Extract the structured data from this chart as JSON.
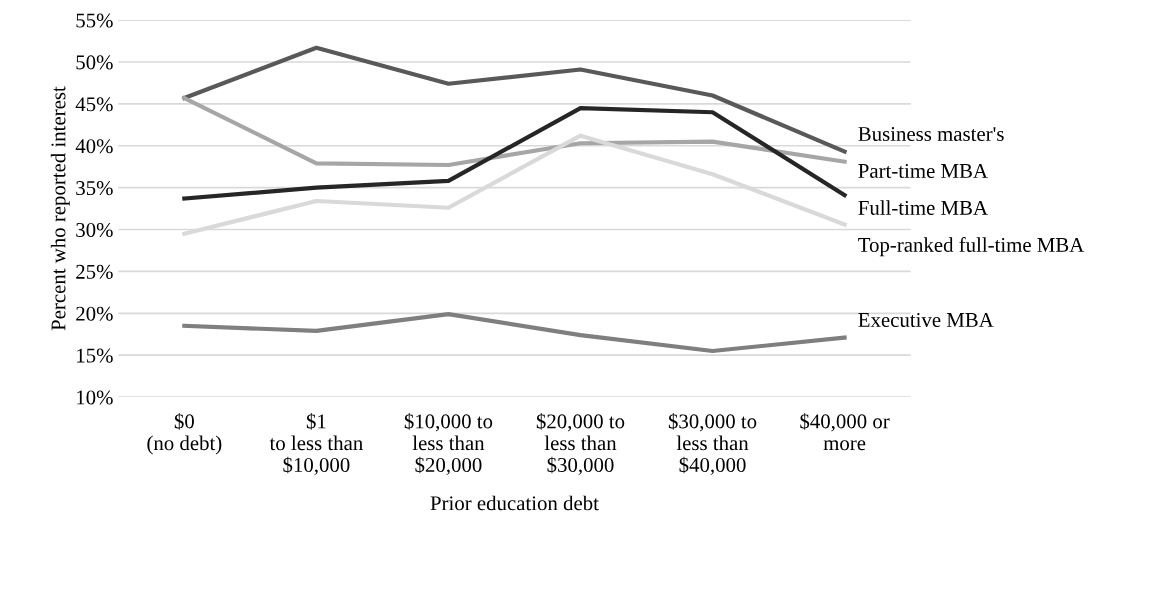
{
  "chart_data": {
    "type": "line",
    "xlabel": "Prior education debt",
    "ylabel": "Percent who reported interest",
    "categories": [
      "$0\n(no debt)",
      "$1\nto less than\n$10,000",
      "$10,000 to\nless than\n$20,000",
      "$20,000 to\nless than\n$30,000",
      "$30,000 to\nless than\n$40,000",
      "$40,000 or\nmore"
    ],
    "series": [
      {
        "name": "Business master's",
        "color": "#595959",
        "values": [
          45.7,
          51.7,
          47.4,
          49.1,
          46.0,
          39.3
        ]
      },
      {
        "name": "Part-time MBA",
        "color": "#a6a6a6",
        "values": [
          45.7,
          37.9,
          37.7,
          40.3,
          40.5,
          38.1
        ]
      },
      {
        "name": "Full-time MBA",
        "color": "#262626",
        "values": [
          33.7,
          35.0,
          35.8,
          44.5,
          44.0,
          34.1
        ]
      },
      {
        "name": "Top-ranked full-time MBA",
        "color": "#d9d9d9",
        "values": [
          29.5,
          33.4,
          32.6,
          41.2,
          36.6,
          30.6
        ]
      },
      {
        "name": "Executive MBA",
        "color": "#7f7f7f",
        "values": [
          18.5,
          17.9,
          19.9,
          17.4,
          15.5,
          17.1
        ]
      }
    ],
    "ylim": [
      10,
      55
    ],
    "yticks": [
      {
        "value": 10,
        "label": "10%"
      },
      {
        "value": 15,
        "label": "15%"
      },
      {
        "value": 20,
        "label": "20%"
      },
      {
        "value": 25,
        "label": "25%"
      },
      {
        "value": 30,
        "label": "30%"
      },
      {
        "value": 35,
        "label": "35%"
      },
      {
        "value": 40,
        "label": "40%"
      },
      {
        "value": 45,
        "label": "45%"
      },
      {
        "value": 50,
        "label": "50%"
      },
      {
        "value": 55,
        "label": "55%"
      }
    ],
    "grid": "y",
    "legend": false,
    "marker": "none",
    "line_style": "solid"
  }
}
